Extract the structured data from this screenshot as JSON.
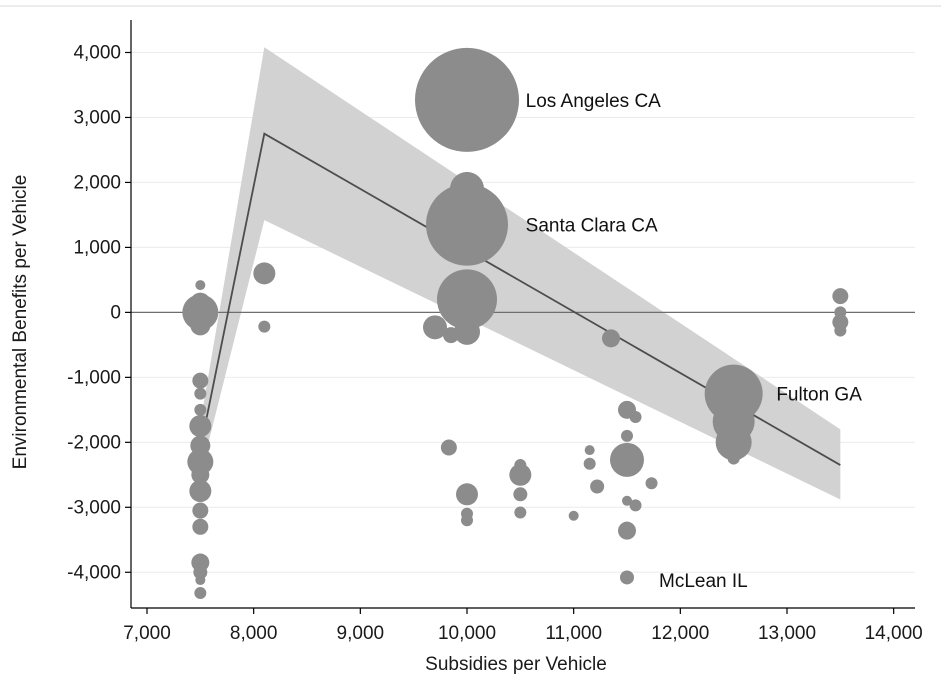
{
  "chart_data": {
    "type": "scatter",
    "xlabel": "Subsidies per Vehicle",
    "ylabel": "Environmental Benefits per Vehicle",
    "xlim": [
      6850,
      14200
    ],
    "ylim": [
      -4550,
      4500
    ],
    "x_ticks": [
      7000,
      8000,
      9000,
      10000,
      11000,
      12000,
      13000,
      14000
    ],
    "x_tick_labels": [
      "7,000",
      "8,000",
      "9,000",
      "10,000",
      "11,000",
      "12,000",
      "13,000",
      "14,000"
    ],
    "y_ticks": [
      4000,
      3000,
      2000,
      1000,
      0,
      -1000,
      -2000,
      -3000,
      -4000
    ],
    "y_tick_labels": [
      "4,000",
      "3,000",
      "2,000",
      "1,000",
      "0",
      "-1,000",
      "-2,000",
      "-3,000",
      "-4,000"
    ],
    "grid": "horizontal",
    "zero_line": true,
    "colors": {
      "bubble": "#8c8c8c",
      "band": "#d2d2d2",
      "fit": "#4d4d4d",
      "grid": "#ececec"
    },
    "fit_line": {
      "x": [
        7500,
        8100,
        13500
      ],
      "y": [
        -2100,
        2750,
        -2350
      ],
      "ci_upper": [
        -1700,
        4080,
        -1800
      ],
      "ci_lower": [
        -2500,
        1420,
        -2880
      ]
    },
    "bubbles": [
      {
        "x": 10000,
        "y": 3270,
        "size": 52
      },
      {
        "x": 10000,
        "y": 1350,
        "size": 41
      },
      {
        "x": 10000,
        "y": 1900,
        "size": 17
      },
      {
        "x": 10000,
        "y": 200,
        "size": 30
      },
      {
        "x": 10000,
        "y": -300,
        "size": 13
      },
      {
        "x": 9700,
        "y": -230,
        "size": 12
      },
      {
        "x": 9850,
        "y": -350,
        "size": 8
      },
      {
        "x": 12500,
        "y": -1250,
        "size": 29
      },
      {
        "x": 12500,
        "y": -1680,
        "size": 21
      },
      {
        "x": 12500,
        "y": -2000,
        "size": 18
      },
      {
        "x": 12500,
        "y": -2250,
        "size": 6
      },
      {
        "x": 8100,
        "y": 600,
        "size": 11
      },
      {
        "x": 8100,
        "y": -220,
        "size": 6
      },
      {
        "x": 7500,
        "y": 0,
        "size": 18
      },
      {
        "x": 7500,
        "y": 150,
        "size": 10
      },
      {
        "x": 7500,
        "y": -200,
        "size": 10
      },
      {
        "x": 7500,
        "y": 420,
        "size": 5
      },
      {
        "x": 7500,
        "y": -1050,
        "size": 8
      },
      {
        "x": 7500,
        "y": -1250,
        "size": 6
      },
      {
        "x": 7500,
        "y": -1500,
        "size": 6
      },
      {
        "x": 7500,
        "y": -1750,
        "size": 11
      },
      {
        "x": 7500,
        "y": -2050,
        "size": 10
      },
      {
        "x": 7500,
        "y": -2300,
        "size": 13
      },
      {
        "x": 7500,
        "y": -2500,
        "size": 9
      },
      {
        "x": 7500,
        "y": -2750,
        "size": 11
      },
      {
        "x": 7500,
        "y": -3050,
        "size": 8
      },
      {
        "x": 7500,
        "y": -3300,
        "size": 8
      },
      {
        "x": 7500,
        "y": -3850,
        "size": 9
      },
      {
        "x": 7500,
        "y": -4000,
        "size": 7
      },
      {
        "x": 7500,
        "y": -4120,
        "size": 5
      },
      {
        "x": 7500,
        "y": -4320,
        "size": 6
      },
      {
        "x": 9830,
        "y": -2080,
        "size": 8
      },
      {
        "x": 10000,
        "y": -2800,
        "size": 11
      },
      {
        "x": 10000,
        "y": -3100,
        "size": 6
      },
      {
        "x": 10000,
        "y": -3200,
        "size": 6
      },
      {
        "x": 10500,
        "y": -2350,
        "size": 6
      },
      {
        "x": 10500,
        "y": -2500,
        "size": 11
      },
      {
        "x": 10500,
        "y": -2800,
        "size": 7
      },
      {
        "x": 10500,
        "y": -3080,
        "size": 6
      },
      {
        "x": 11000,
        "y": -3130,
        "size": 5
      },
      {
        "x": 11150,
        "y": -2120,
        "size": 5
      },
      {
        "x": 11150,
        "y": -2330,
        "size": 6
      },
      {
        "x": 11220,
        "y": -2680,
        "size": 7
      },
      {
        "x": 11350,
        "y": -400,
        "size": 9
      },
      {
        "x": 11500,
        "y": -1500,
        "size": 9
      },
      {
        "x": 11580,
        "y": -1610,
        "size": 6
      },
      {
        "x": 11500,
        "y": -1900,
        "size": 6
      },
      {
        "x": 11500,
        "y": -2270,
        "size": 17
      },
      {
        "x": 11500,
        "y": -2900,
        "size": 5
      },
      {
        "x": 11580,
        "y": -2970,
        "size": 6
      },
      {
        "x": 11500,
        "y": -3360,
        "size": 9
      },
      {
        "x": 11500,
        "y": -4080,
        "size": 7
      },
      {
        "x": 11730,
        "y": -2630,
        "size": 6
      },
      {
        "x": 13500,
        "y": 250,
        "size": 8
      },
      {
        "x": 13500,
        "y": 0,
        "size": 6
      },
      {
        "x": 13500,
        "y": -150,
        "size": 8
      },
      {
        "x": 13500,
        "y": -280,
        "size": 6
      }
    ],
    "annotations": [
      {
        "text": "Los Angeles CA",
        "x": 10550,
        "y": 3270
      },
      {
        "text": "Santa Clara CA",
        "x": 10550,
        "y": 1350
      },
      {
        "text": "Fulton GA",
        "x": 12900,
        "y": -1250
      },
      {
        "text": "McLean IL",
        "x": 11800,
        "y": -4120
      }
    ]
  }
}
